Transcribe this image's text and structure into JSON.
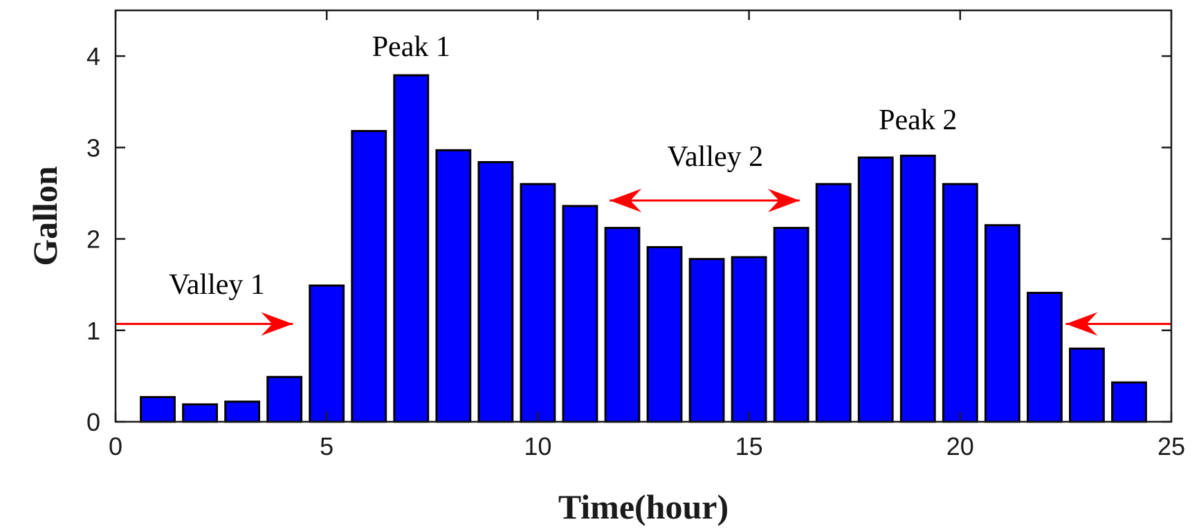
{
  "chart_data": {
    "type": "bar",
    "title": "",
    "xlabel": "Time(hour)",
    "ylabel": "Gallon",
    "xlim": [
      0,
      25
    ],
    "ylim": [
      0,
      4.5
    ],
    "xticks": [
      "0",
      "5",
      "10",
      "15",
      "20",
      "25"
    ],
    "yticks": [
      "0",
      "1",
      "2",
      "3",
      "4"
    ],
    "grid": false,
    "x": [
      1,
      2,
      3,
      4,
      5,
      6,
      7,
      8,
      9,
      10,
      11,
      12,
      13,
      14,
      15,
      16,
      17,
      18,
      19,
      20,
      21,
      22,
      23,
      24
    ],
    "values": [
      0.27,
      0.19,
      0.22,
      0.49,
      1.49,
      3.18,
      3.79,
      2.97,
      2.84,
      2.6,
      2.36,
      2.12,
      1.91,
      1.78,
      1.8,
      2.12,
      2.6,
      2.89,
      2.91,
      2.6,
      2.15,
      1.41,
      0.8,
      0.43
    ],
    "bar_color": "#0000ff",
    "bar_edge_color": "#000000",
    "annotations": [
      {
        "text": "Peak 1",
        "x": 7,
        "y": 4.0
      },
      {
        "text": "Peak 2",
        "x": 19,
        "y": 3.2
      },
      {
        "text": "Valley 1",
        "x": 2.4,
        "y": 1.4
      },
      {
        "text": "Valley 2",
        "x": 14.2,
        "y": 2.8
      }
    ],
    "arrows": [
      {
        "name": "valley-1-left-arrow",
        "from": [
          0,
          1.07
        ],
        "to": [
          4.2,
          1.07
        ],
        "heads": "end"
      },
      {
        "name": "valley-1-right-arrow",
        "from": [
          25,
          1.07
        ],
        "to": [
          22.5,
          1.07
        ],
        "heads": "end"
      },
      {
        "name": "valley-2-arrow",
        "from": [
          11.7,
          2.42
        ],
        "to": [
          16.2,
          2.42
        ],
        "heads": "both"
      }
    ],
    "arrow_color": "#ff0000"
  }
}
